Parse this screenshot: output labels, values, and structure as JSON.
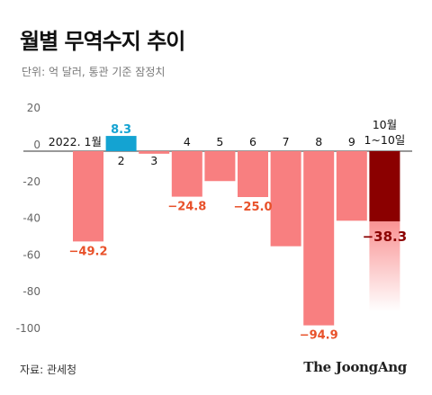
{
  "title": "월별 무역수지 추이",
  "subtitle": "단위: 억 달러, 통관 기준 잠정치",
  "source": "자료: 관세청",
  "brand": "The JoongAng",
  "colors": {
    "negative": "#f87f80",
    "positive": "#14a3d2",
    "current": "#8b0000",
    "negative_label": "#e8512a",
    "positive_label": "#14a3d2",
    "current_label": "#8b0000"
  },
  "chart_data": {
    "type": "bar",
    "title": "월별 무역수지 추이",
    "ylabel": "단위: 억 달러",
    "ylim": [
      -100,
      20
    ],
    "yticks": [
      20,
      0,
      -20,
      -40,
      -60,
      -80,
      -100
    ],
    "ytick_labels": [
      "20",
      "0",
      "-20",
      "-40",
      "-60",
      "-80",
      "-100"
    ],
    "grid": false,
    "categories": [
      "2022. 1월",
      "2",
      "3",
      "4",
      "5",
      "6",
      "7",
      "8",
      "9",
      "10월\n1~10일"
    ],
    "values": [
      -49.2,
      8.3,
      -1.4,
      -24.8,
      -16.3,
      -25.0,
      -51.8,
      -94.9,
      -37.9,
      -38.3
    ],
    "data_labels": [
      "−49.2",
      "8.3",
      "",
      "−24.8",
      "",
      "−25.0",
      "",
      "−94.9",
      "",
      "−38.3"
    ],
    "highlight_index": 9
  }
}
